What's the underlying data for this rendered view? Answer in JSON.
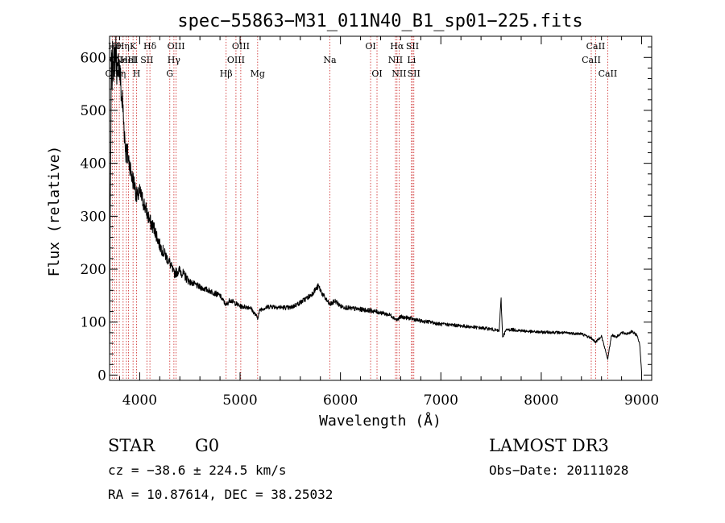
{
  "chart_data": {
    "type": "line",
    "title": "spec−55863−M31_011N40_B1_sp01−225.fits",
    "xlabel": "Wavelength (Å)",
    "ylabel": "Flux (relative)",
    "xlim": [
      3700,
      9100
    ],
    "ylim": [
      -10,
      640
    ],
    "xticks": [
      4000,
      5000,
      6000,
      7000,
      8000,
      9000
    ],
    "yticks": [
      0,
      100,
      200,
      300,
      400,
      500,
      600
    ],
    "series": [
      {
        "name": "spectrum",
        "anchors": [
          [
            3700,
            0
          ],
          [
            3705,
            240
          ],
          [
            3712,
            420
          ],
          [
            3718,
            600
          ],
          [
            3725,
            560
          ],
          [
            3732,
            610
          ],
          [
            3740,
            585
          ],
          [
            3750,
            600
          ],
          [
            3760,
            620
          ],
          [
            3770,
            590
          ],
          [
            3780,
            560
          ],
          [
            3790,
            600
          ],
          [
            3800,
            575
          ],
          [
            3810,
            555
          ],
          [
            3820,
            520
          ],
          [
            3830,
            515
          ],
          [
            3840,
            480
          ],
          [
            3850,
            455
          ],
          [
            3860,
            425
          ],
          [
            3880,
            415
          ],
          [
            3900,
            400
          ],
          [
            3920,
            375
          ],
          [
            3950,
            360
          ],
          [
            3970,
            335
          ],
          [
            4000,
            345
          ],
          [
            4050,
            320
          ],
          [
            4101,
            290
          ],
          [
            4150,
            275
          ],
          [
            4200,
            245
          ],
          [
            4250,
            228
          ],
          [
            4300,
            212
          ],
          [
            4340,
            192
          ],
          [
            4400,
            198
          ],
          [
            4500,
            176
          ],
          [
            4600,
            166
          ],
          [
            4700,
            159
          ],
          [
            4800,
            150
          ],
          [
            4861,
            132
          ],
          [
            4900,
            142
          ],
          [
            5000,
            130
          ],
          [
            5100,
            128
          ],
          [
            5175,
            108
          ],
          [
            5200,
            124
          ],
          [
            5300,
            130
          ],
          [
            5400,
            128
          ],
          [
            5500,
            127
          ],
          [
            5600,
            137
          ],
          [
            5700,
            150
          ],
          [
            5780,
            168
          ],
          [
            5830,
            150
          ],
          [
            5893,
            133
          ],
          [
            5950,
            140
          ],
          [
            6000,
            130
          ],
          [
            6100,
            126
          ],
          [
            6200,
            124
          ],
          [
            6300,
            122
          ],
          [
            6400,
            118
          ],
          [
            6500,
            113
          ],
          [
            6563,
            104
          ],
          [
            6600,
            110
          ],
          [
            6700,
            107
          ],
          [
            6800,
            102
          ],
          [
            6900,
            100
          ],
          [
            7000,
            96
          ],
          [
            7100,
            95
          ],
          [
            7200,
            93
          ],
          [
            7300,
            91
          ],
          [
            7400,
            89
          ],
          [
            7500,
            87
          ],
          [
            7580,
            83
          ],
          [
            7600,
            142
          ],
          [
            7615,
            72
          ],
          [
            7650,
            85
          ],
          [
            7700,
            86
          ],
          [
            7800,
            84
          ],
          [
            7900,
            82
          ],
          [
            8000,
            81
          ],
          [
            8100,
            81
          ],
          [
            8200,
            80
          ],
          [
            8300,
            79
          ],
          [
            8400,
            78
          ],
          [
            8498,
            70
          ],
          [
            8542,
            62
          ],
          [
            8600,
            74
          ],
          [
            8662,
            30
          ],
          [
            8700,
            76
          ],
          [
            8750,
            72
          ],
          [
            8800,
            80
          ],
          [
            8850,
            78
          ],
          [
            8900,
            82
          ],
          [
            8950,
            76
          ],
          [
            8980,
            60
          ],
          [
            9000,
            5
          ]
        ]
      }
    ],
    "lines": [
      {
        "x": 3727,
        "label": "OII",
        "row": 3
      },
      {
        "x": 3750,
        "label": "Hθ",
        "row": 1
      },
      {
        "x": 3770,
        "label": "OII",
        "row": 2
      },
      {
        "x": 3797,
        "label": "Hη",
        "row": 3
      },
      {
        "x": 3835,
        "label": "Hη",
        "row": 1
      },
      {
        "x": 3868,
        "label": "NeIII",
        "row": 2
      },
      {
        "x": 3889,
        "label": "HeI",
        "row": 2
      },
      {
        "x": 3934,
        "label": "K",
        "row": 1
      },
      {
        "x": 3969,
        "label": "H",
        "row": 3
      },
      {
        "x": 4072,
        "label": "SII",
        "row": 2
      },
      {
        "x": 4102,
        "label": "Hδ",
        "row": 1
      },
      {
        "x": 4300,
        "label": "G",
        "row": 3
      },
      {
        "x": 4341,
        "label": "Hγ",
        "row": 2
      },
      {
        "x": 4363,
        "label": "OIII",
        "row": 1
      },
      {
        "x": 4861,
        "label": "Hβ",
        "row": 3
      },
      {
        "x": 4959,
        "label": "OIII",
        "row": 2
      },
      {
        "x": 5007,
        "label": "OIII",
        "row": 1
      },
      {
        "x": 5175,
        "label": "Mg",
        "row": 3
      },
      {
        "x": 5894,
        "label": "Na",
        "row": 2
      },
      {
        "x": 6300,
        "label": "OI",
        "row": 1
      },
      {
        "x": 6364,
        "label": "OI",
        "row": 3
      },
      {
        "x": 6548,
        "label": "NII",
        "row": 2
      },
      {
        "x": 6563,
        "label": "Hα",
        "row": 1
      },
      {
        "x": 6584,
        "label": "NII",
        "row": 3
      },
      {
        "x": 6707,
        "label": "Li",
        "row": 2
      },
      {
        "x": 6717,
        "label": "SII",
        "row": 1
      },
      {
        "x": 6731,
        "label": "SII",
        "row": 3
      },
      {
        "x": 8498,
        "label": "CaII",
        "row": 2
      },
      {
        "x": 8542,
        "label": "CaII",
        "row": 1
      },
      {
        "x": 8662,
        "label": "CaII",
        "row": 3
      }
    ]
  },
  "info": {
    "class": "STAR",
    "subclass": "G0",
    "survey": "LAMOST DR3",
    "cz": "cz = −38.6 ± 224.5 km/s",
    "obs_date": "Obs−Date: 20111028",
    "coords": "RA =  10.87614, DEC =  38.25032"
  },
  "colors": {
    "line_marker": "#cc2222",
    "spectrum": "#000000",
    "axes": "#000000"
  }
}
